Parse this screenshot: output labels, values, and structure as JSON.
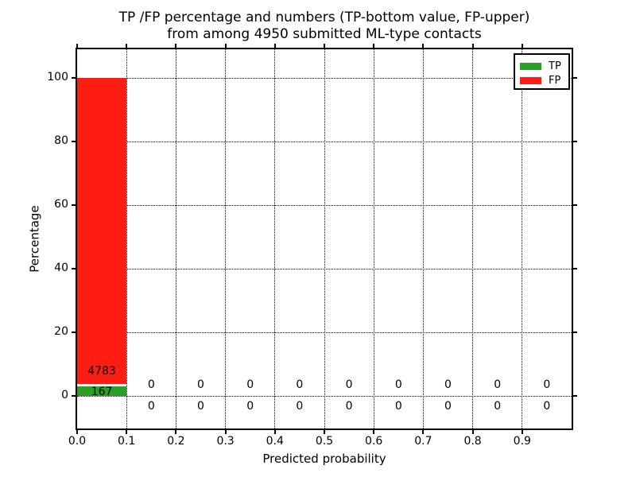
{
  "figure": {
    "title_line1": "TP /FP percentage and numbers (TP-bottom value, FP-upper)",
    "title_line2": "from among 4950 submitted ML-type contacts",
    "xlabel": "Predicted probability",
    "ylabel": "Percentage"
  },
  "legend": {
    "position": "upper right",
    "items": [
      {
        "label": "TP",
        "color": "#28a028"
      },
      {
        "label": "FP",
        "color": "#fd1d12"
      }
    ]
  },
  "chart_data": {
    "type": "bar",
    "stacked": true,
    "title": "TP /FP percentage and numbers (TP-bottom value, FP-upper)\nfrom among 4950 submitted ML-type contacts",
    "xlabel": "Predicted probability",
    "ylabel": "Percentage",
    "total_submitted": 4950,
    "bin_width": 0.1,
    "bin_starts": [
      0.0,
      0.1,
      0.2,
      0.3,
      0.4,
      0.5,
      0.6,
      0.7,
      0.8,
      0.9
    ],
    "series": [
      {
        "name": "TP",
        "color": "#28a028",
        "counts": [
          167,
          0,
          0,
          0,
          0,
          0,
          0,
          0,
          0,
          0
        ],
        "percentages": [
          3.37,
          0,
          0,
          0,
          0,
          0,
          0,
          0,
          0,
          0
        ]
      },
      {
        "name": "FP",
        "color": "#fd1d12",
        "counts": [
          4783,
          0,
          0,
          0,
          0,
          0,
          0,
          0,
          0,
          0
        ],
        "percentages": [
          96.63,
          0,
          0,
          0,
          0,
          0,
          0,
          0,
          0,
          0
        ]
      }
    ],
    "xticks": [
      "0.0",
      "0.1",
      "0.2",
      "0.3",
      "0.4",
      "0.5",
      "0.6",
      "0.7",
      "0.8",
      "0.9"
    ],
    "yticks": [
      "0",
      "20",
      "40",
      "60",
      "80",
      "100"
    ],
    "xlim": [
      0.0,
      1.0
    ],
    "ylim": [
      -10,
      109
    ],
    "grid": "dotted",
    "legend_position": "upper right"
  }
}
